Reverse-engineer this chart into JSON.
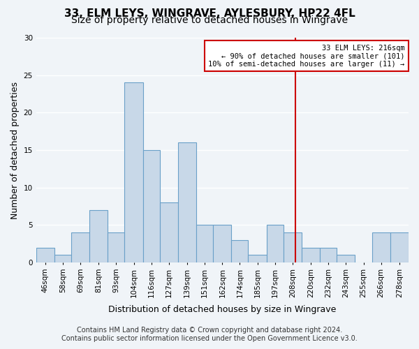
{
  "title": "33, ELM LEYS, WINGRAVE, AYLESBURY, HP22 4FL",
  "subtitle": "Size of property relative to detached houses in Wingrave",
  "xlabel": "Distribution of detached houses by size in Wingrave",
  "ylabel": "Number of detached properties",
  "categories": [
    "46sqm",
    "58sqm",
    "69sqm",
    "81sqm",
    "93sqm",
    "104sqm",
    "116sqm",
    "127sqm",
    "139sqm",
    "151sqm",
    "162sqm",
    "174sqm",
    "185sqm",
    "197sqm",
    "208sqm",
    "220sqm",
    "232sqm",
    "243sqm",
    "255sqm",
    "266sqm",
    "278sqm"
  ],
  "values": [
    2,
    1,
    4,
    7,
    4,
    24,
    15,
    8,
    16,
    5,
    5,
    3,
    1,
    5,
    4,
    2,
    2,
    1,
    0,
    4,
    4
  ],
  "bar_color": "#c8d8e8",
  "bar_edgecolor": "#6aa0c8",
  "bar_linewidth": 0.8,
  "redline_x": 216,
  "bin_edges": [
    46,
    58,
    69,
    81,
    93,
    104,
    116,
    127,
    139,
    151,
    162,
    174,
    185,
    197,
    208,
    220,
    232,
    243,
    255,
    266,
    278,
    290
  ],
  "annotation_title": "33 ELM LEYS: 216sqm",
  "annotation_line1": "← 90% of detached houses are smaller (101)",
  "annotation_line2": "10% of semi-detached houses are larger (11) →",
  "annotation_box_color": "#ffffff",
  "annotation_box_edgecolor": "#cc0000",
  "redline_color": "#cc0000",
  "background_color": "#f0f4f8",
  "grid_color": "#ffffff",
  "ylim": [
    0,
    30
  ],
  "yticks": [
    0,
    5,
    10,
    15,
    20,
    25,
    30
  ],
  "footer_line1": "Contains HM Land Registry data © Crown copyright and database right 2024.",
  "footer_line2": "Contains public sector information licensed under the Open Government Licence v3.0.",
  "title_fontsize": 11,
  "subtitle_fontsize": 10,
  "xlabel_fontsize": 9,
  "ylabel_fontsize": 9,
  "tick_fontsize": 7.5,
  "footer_fontsize": 7
}
